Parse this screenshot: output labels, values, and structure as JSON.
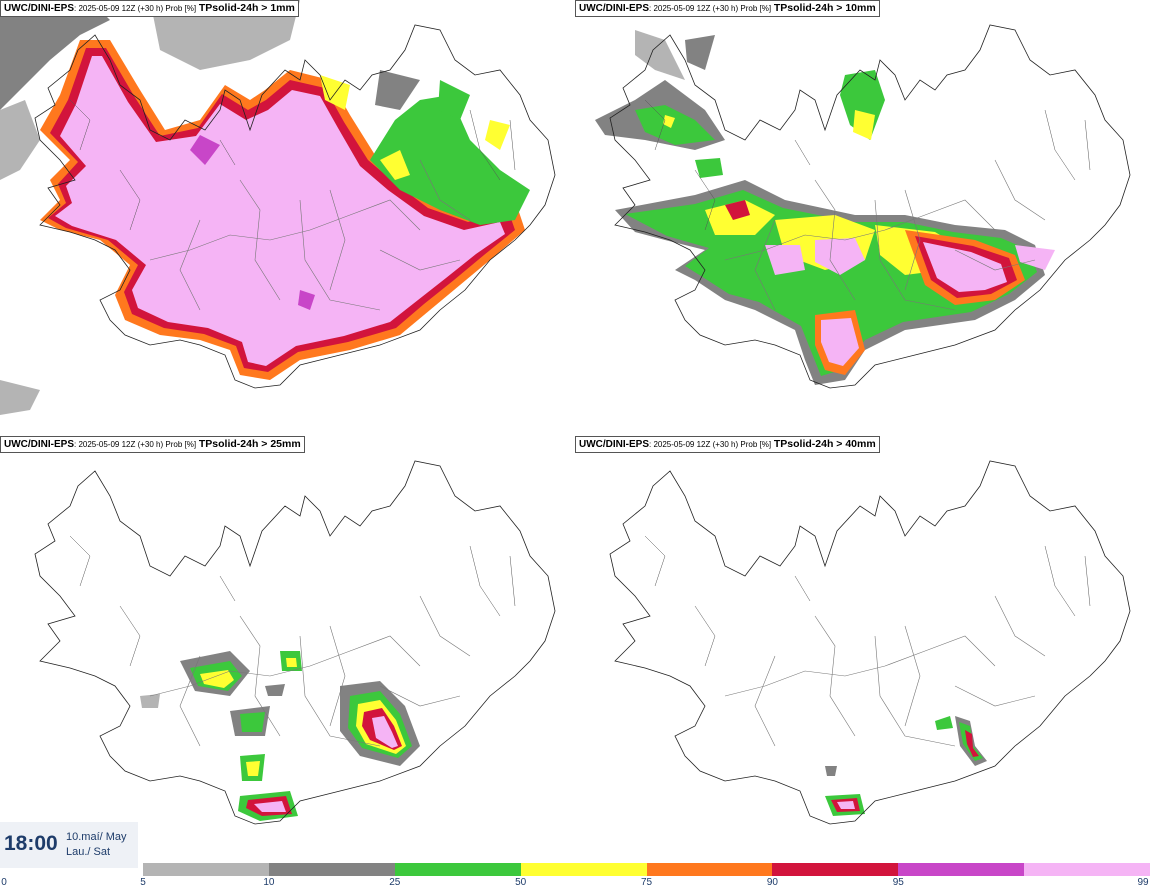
{
  "panels": [
    {
      "model": "UWC/DINI-EPS",
      "meta": ": 2025-05-09 12Z (+30 h) Prob [%]",
      "param": "TPsolid-24h > 1mm"
    },
    {
      "model": "UWC/DINI-EPS",
      "meta": ": 2025-05-09 12Z (+30 h) Prob [%]",
      "param": "TPsolid-24h > 10mm"
    },
    {
      "model": "UWC/DINI-EPS",
      "meta": ": 2025-05-09 12Z (+30 h) Prob [%]",
      "param": "TPsolid-24h > 25mm"
    },
    {
      "model": "UWC/DINI-EPS",
      "meta": ": 2025-05-09 12Z (+30 h) Prob [%]",
      "param": "TPsolid-24h > 40mm"
    }
  ],
  "time": {
    "clock": "18:00",
    "date_line1": "10.maí/ May",
    "date_line2": "Lau./ Sat"
  },
  "legend": {
    "tick_labels": [
      "0",
      "5",
      "10",
      "25",
      "50",
      "75",
      "90",
      "95",
      "99"
    ],
    "colors": [
      "#b4b4b4",
      "#828282",
      "#3cc83c",
      "#ffff32",
      "#ff781e",
      "#d2143c",
      "#c846c8",
      "#f5b4f5"
    ]
  },
  "fill_colors": {
    "p5": "#b4b4b4",
    "p10": "#828282",
    "p25": "#3cc83c",
    "p50": "#ffff32",
    "p75": "#ff781e",
    "p90": "#d2143c",
    "p95": "#c846c8",
    "p99": "#f5b4f5"
  }
}
